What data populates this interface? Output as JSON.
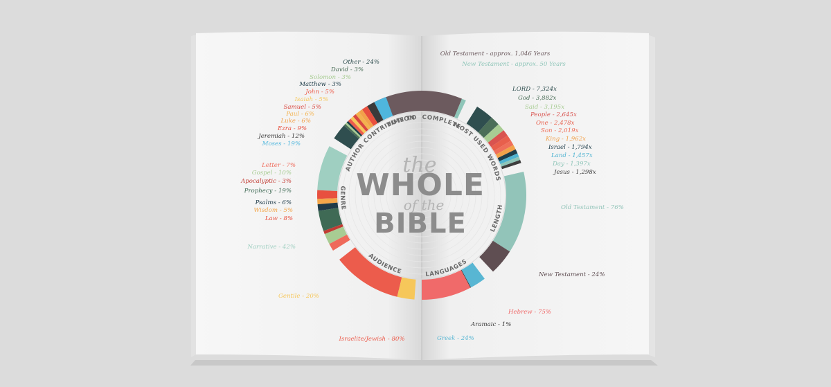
{
  "title": {
    "line1": "the",
    "line2": "WHOLE",
    "line3": "of the",
    "line4": "BIBLE"
  },
  "colors": {
    "background": "#dcdcdc",
    "page": "#f4f4f4"
  },
  "chart_data": {
    "type": "pie",
    "style": "segmented ring",
    "sections": [
      {
        "id": "time",
        "label_parts": [
          "TIME TO",
          "COMPLETE"
        ],
        "items": [
          {
            "label": "Old Testament - approx. 1,046 Years",
            "value": 1046,
            "color": "#6c5a5e"
          },
          {
            "label": "New Testament - approx. 50 Years",
            "value": 50,
            "color": "#8ec5b8"
          }
        ]
      },
      {
        "id": "words",
        "label": "MOST USED WORDS",
        "items": [
          {
            "label": "LORD - 7,324x",
            "value": 7324,
            "color": "#2f4e4f"
          },
          {
            "label": "God - 3,882x",
            "value": 3882,
            "color": "#4b6e58"
          },
          {
            "label": "Said - 3,195x",
            "value": 3195,
            "color": "#a8cc93"
          },
          {
            "label": "People - 2,645x",
            "value": 2645,
            "color": "#d9534f"
          },
          {
            "label": "One - 2,478x",
            "value": 2478,
            "color": "#e85f4c"
          },
          {
            "label": "Son - 2,019x",
            "value": 2019,
            "color": "#ef6f5a"
          },
          {
            "label": "King - 1,962x",
            "value": 1962,
            "color": "#f2a14a"
          },
          {
            "label": "Israel - 1,794x",
            "value": 1794,
            "color": "#1f3d4a"
          },
          {
            "label": "Land - 1,457x",
            "value": 1457,
            "color": "#4fb3d1"
          },
          {
            "label": "Day - 1,397x",
            "value": 1397,
            "color": "#8ec5b8"
          },
          {
            "label": "Jesus - 1,298x",
            "value": 1298,
            "color": "#3d3d3d"
          }
        ]
      },
      {
        "id": "length",
        "label": "LENGTH",
        "items": [
          {
            "label": "Old Testament - 76%",
            "value": 76,
            "color": "#92c4b9"
          },
          {
            "label": "New Testament - 24%",
            "value": 24,
            "color": "#5f4e52"
          }
        ]
      },
      {
        "id": "languages",
        "label": "LANGUAGES",
        "items": [
          {
            "label": "Hebrew - 75%",
            "value": 75,
            "color": "#f06a6a"
          },
          {
            "label": "Aramaic - 1%",
            "value": 1,
            "color": "#3a3a3a"
          },
          {
            "label": "Greek - 24%",
            "value": 24,
            "color": "#58b6d3"
          }
        ]
      },
      {
        "id": "audience",
        "label": "AUDIENCE",
        "items": [
          {
            "label": "Israelite/Jewish - 80%",
            "value": 80,
            "color": "#ec5c4c"
          },
          {
            "label": "Gentile - 20%",
            "value": 20,
            "color": "#f6c75a"
          }
        ]
      },
      {
        "id": "genre",
        "label": "GENRE",
        "items": [
          {
            "label": "Narrative - 42%",
            "value": 42,
            "color": "#9fcfc1"
          },
          {
            "label": "Law - 8%",
            "value": 8,
            "color": "#e8503f"
          },
          {
            "label": "Wisdom - 5%",
            "value": 5,
            "color": "#f3a64a"
          },
          {
            "label": "Psalms - 6%",
            "value": 6,
            "color": "#1e3a48"
          },
          {
            "label": "Prophecy - 19%",
            "value": 19,
            "color": "#3f6a55"
          },
          {
            "label": "Apocalyptic - 3%",
            "value": 3,
            "color": "#c23b33"
          },
          {
            "label": "Gospel - 10%",
            "value": 10,
            "color": "#a8cc93"
          },
          {
            "label": "Letter - 7%",
            "value": 7,
            "color": "#ef6a5a"
          }
        ]
      },
      {
        "id": "author",
        "label": "AUTHOR CONTRIBUTION",
        "items": [
          {
            "label": "Moses - 19%",
            "value": 19,
            "color": "#4fb6dd"
          },
          {
            "label": "Jeremiah - 12%",
            "value": 12,
            "color": "#3a3a3a"
          },
          {
            "label": "Ezra - 9%",
            "value": 9,
            "color": "#e8503f"
          },
          {
            "label": "Luke - 6%",
            "value": 6,
            "color": "#f2a14a"
          },
          {
            "label": "Paul - 6%",
            "value": 6,
            "color": "#f3b24e"
          },
          {
            "label": "Samuel - 5%",
            "value": 5,
            "color": "#d9473f"
          },
          {
            "label": "Isaiah - 5%",
            "value": 5,
            "color": "#f6c75a"
          },
          {
            "label": "John - 5%",
            "value": 5,
            "color": "#ec5c4c"
          },
          {
            "label": "Matthew - 3%",
            "value": 3,
            "color": "#1f3d4a"
          },
          {
            "label": "Solomon - 3%",
            "value": 3,
            "color": "#a8cc93"
          },
          {
            "label": "David - 3%",
            "value": 3,
            "color": "#4b6e58"
          },
          {
            "label": "Other - 24%",
            "value": 24,
            "color": "#2f4e4f"
          }
        ]
      }
    ]
  }
}
